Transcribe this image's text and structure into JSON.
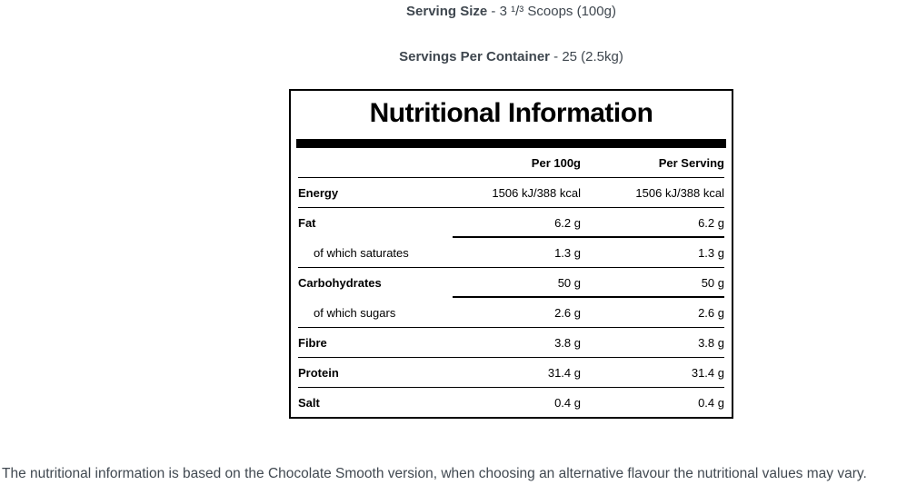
{
  "top": {
    "serving_size": {
      "label": "Serving Size",
      "value": " - 3 ¹/³ Scoops (100g)"
    },
    "servings_per_container": {
      "label": "Servings Per Container",
      "value": " - 25 (2.5kg)"
    }
  },
  "table": {
    "title": "Nutritional Information",
    "columns": [
      "Per 100g",
      "Per Serving"
    ],
    "rows": [
      {
        "label": "Energy",
        "per_100g": "1506 kJ/388 kcal",
        "per_serving": "1506 kJ/388 kcal",
        "indent": false,
        "separator": "full"
      },
      {
        "label": "Fat",
        "per_100g": "6.2 g",
        "per_serving": "6.2 g",
        "indent": false,
        "separator": "partial"
      },
      {
        "label": "of which saturates",
        "per_100g": "1.3 g",
        "per_serving": "1.3 g",
        "indent": true,
        "separator": "full"
      },
      {
        "label": "Carbohydrates",
        "per_100g": "50 g",
        "per_serving": "50 g",
        "indent": false,
        "separator": "partial"
      },
      {
        "label": "of which sugars",
        "per_100g": "2.6 g",
        "per_serving": "2.6 g",
        "indent": true,
        "separator": "full"
      },
      {
        "label": "Fibre",
        "per_100g": "3.8 g",
        "per_serving": "3.8 g",
        "indent": false,
        "separator": "full"
      },
      {
        "label": "Protein",
        "per_100g": "31.4 g",
        "per_serving": "31.4 g",
        "indent": false,
        "separator": "full"
      },
      {
        "label": "Salt",
        "per_100g": "0.4 g",
        "per_serving": "0.4 g",
        "indent": false,
        "separator": "none"
      }
    ]
  },
  "footnote": "The nutritional information is based on the Chocolate Smooth version, when choosing an alternative flavour the nutritional values may vary.",
  "colors": {
    "table_ink": "#000000",
    "body_text": "#414951",
    "background": "#ffffff"
  }
}
